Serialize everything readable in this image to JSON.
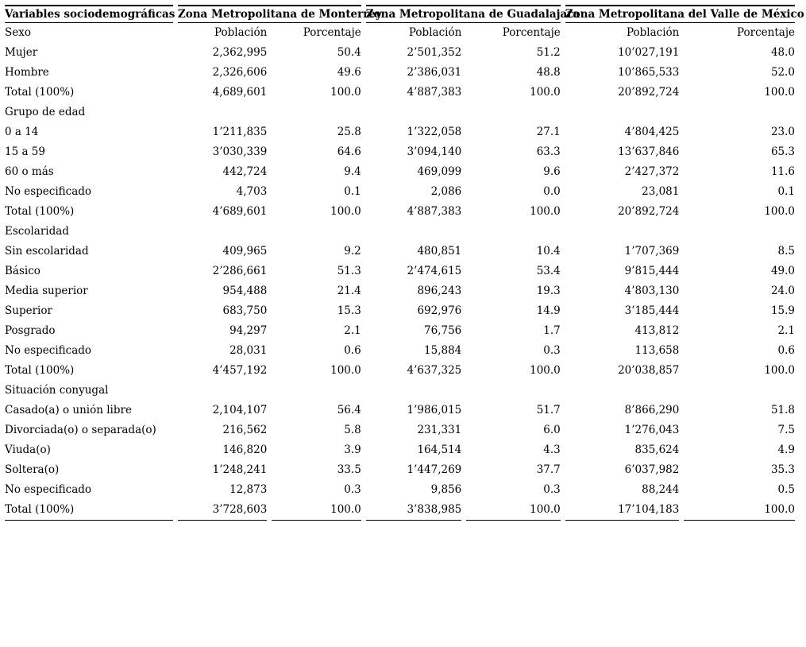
{
  "page": {
    "background_color": "#ffffff",
    "text_color": "#000000"
  },
  "table": {
    "header": {
      "variables_label": "Variables sociodemográficas",
      "zones": [
        "Zona Metropolitana de Monterrey",
        "Zona Metropolitana de Guadalajara",
        "Zona Metropolitana del Valle de México"
      ]
    },
    "subheader": {
      "section_label": "Sexo",
      "columns": [
        "Población",
        "Porcentaje",
        "Población",
        "Porcentaje",
        "Población",
        "Porcentaje"
      ]
    },
    "rows": [
      {
        "label": "Mujer",
        "values": [
          "2,362,995",
          "50.4",
          "2’501,352",
          "51.2",
          "10’027,191",
          "48.0"
        ]
      },
      {
        "label": "Hombre",
        "values": [
          "2,326,606",
          "49.6",
          "2’386,031",
          "48.8",
          "10’865,533",
          "52.0"
        ]
      },
      {
        "label": "Total (100%)",
        "values": [
          "4,689,601",
          "100.0",
          "4’887,383",
          "100.0",
          "20’892,724",
          "100.0"
        ]
      },
      {
        "section": "Grupo de edad"
      },
      {
        "label": "0 a 14",
        "values": [
          "1’211,835",
          "25.8",
          "1’322,058",
          "27.1",
          "4’804,425",
          "23.0"
        ]
      },
      {
        "label": "15 a 59",
        "values": [
          "3’030,339",
          "64.6",
          "3’094,140",
          "63.3",
          "13’637,846",
          "65.3"
        ]
      },
      {
        "label": "60 o más",
        "values": [
          "442,724",
          "9.4",
          "469,099",
          "9.6",
          "2’427,372",
          "11.6"
        ]
      },
      {
        "label": "No especificado",
        "values": [
          "4,703",
          "0.1",
          "2,086",
          "0.0",
          "23,081",
          "0.1"
        ]
      },
      {
        "label": "Total (100%)",
        "values": [
          "4’689,601",
          "100.0",
          "4’887,383",
          "100.0",
          "20’892,724",
          "100.0"
        ]
      },
      {
        "section": "Escolaridad"
      },
      {
        "label": "Sin escolaridad",
        "values": [
          "409,965",
          "9.2",
          "480,851",
          "10.4",
          "1’707,369",
          "8.5"
        ]
      },
      {
        "label": "Básico",
        "values": [
          "2’286,661",
          "51.3",
          "2’474,615",
          "53.4",
          "9’815,444",
          "49.0"
        ]
      },
      {
        "label": "Media superior",
        "values": [
          "954,488",
          "21.4",
          "896,243",
          "19.3",
          "4’803,130",
          "24.0"
        ]
      },
      {
        "label": "Superior",
        "values": [
          "683,750",
          "15.3",
          "692,976",
          "14.9",
          "3’185,444",
          "15.9"
        ]
      },
      {
        "label": "Posgrado",
        "values": [
          "94,297",
          "2.1",
          "76,756",
          "1.7",
          "413,812",
          "2.1"
        ]
      },
      {
        "label": "No especificado",
        "values": [
          "28,031",
          "0.6",
          "15,884",
          "0.3",
          "113,658",
          "0.6"
        ]
      },
      {
        "label": "Total (100%)",
        "values": [
          "4’457,192",
          "100.0",
          "4’637,325",
          "100.0",
          "20’038,857",
          "100.0"
        ]
      },
      {
        "section": "Situación conyugal"
      },
      {
        "label": "Casado(a) o unión libre",
        "values": [
          "2,104,107",
          "56.4",
          "1’986,015",
          "51.7",
          "8’866,290",
          "51.8"
        ]
      },
      {
        "label": "Divorciada(o) o separada(o)",
        "values": [
          "216,562",
          "5.8",
          "231,331",
          "6.0",
          "1’276,043",
          "7.5"
        ]
      },
      {
        "label": "Viuda(o)",
        "values": [
          "146,820",
          "3.9",
          "164,514",
          "4.3",
          "835,624",
          "4.9"
        ]
      },
      {
        "label": "Soltera(o)",
        "values": [
          "1’248,241",
          "33.5",
          "1’447,269",
          "37.7",
          "6’037,982",
          "35.3"
        ]
      },
      {
        "label": "No especificado",
        "values": [
          "12,873",
          "0.3",
          "9,856",
          "0.3",
          "88,244",
          "0.5"
        ]
      },
      {
        "label": "Total (100%)",
        "values": [
          "3’728,603",
          "100.0",
          "3’838,985",
          "100.0",
          "17’104,183",
          "100.0"
        ]
      }
    ]
  }
}
